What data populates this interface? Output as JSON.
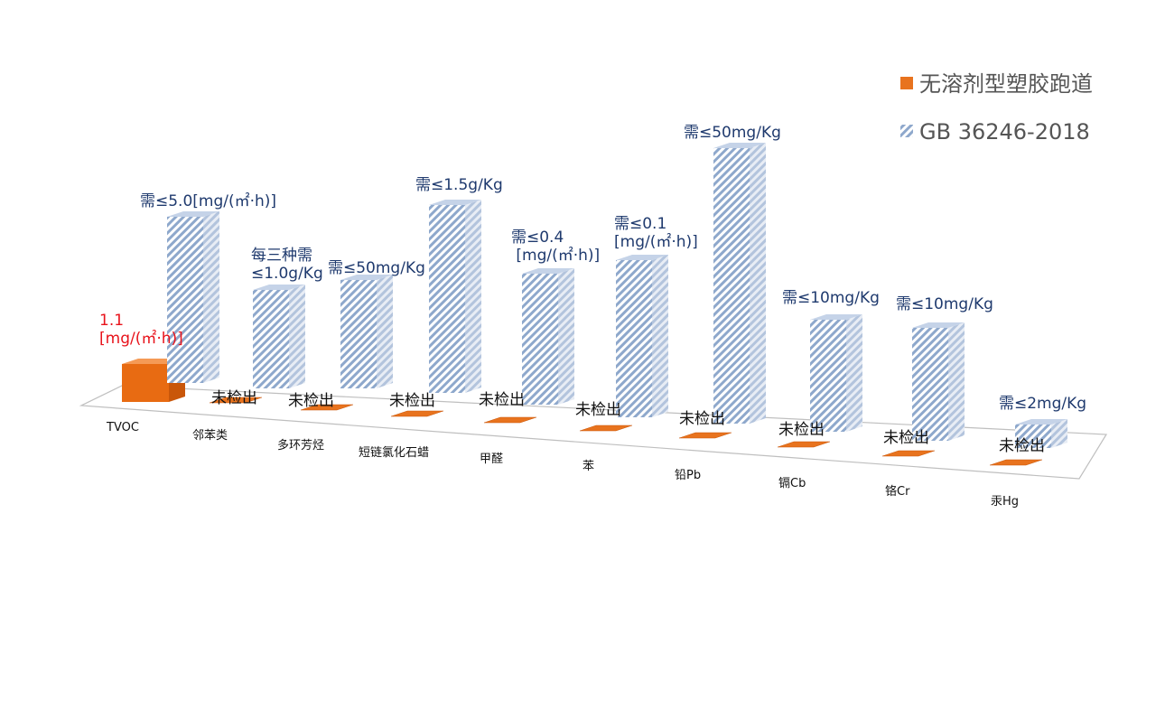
{
  "chart_data": {
    "type": "bar",
    "style": "3d-perspective",
    "series": [
      {
        "name": "无溶剂型塑胶跑道",
        "color": "#e8731e",
        "pattern": "solid",
        "labels": [
          "1.1\n[mg/(㎡·h)]",
          "未检出",
          "未检出",
          "未检出",
          "未检出",
          "未检出",
          "未检出",
          "未检出",
          "未检出",
          "未检出"
        ]
      },
      {
        "name": "GB 36246-2018",
        "color": "#9fb6d6",
        "pattern": "diagonal-hatch",
        "labels": [
          "需≤5.0[mg/(㎡·h)]",
          "每三种需\n≤1.0g/Kg",
          "需≤50mg/Kg",
          "需≤1.5g/Kg",
          "需≤0.4\n [mg/(㎡·h)]",
          "需≤0.1\n[mg/(㎡·h)]",
          "需≤50mg/Kg",
          "需≤10mg/Kg",
          "需≤10mg/Kg",
          "需≤2mg/Kg"
        ]
      }
    ],
    "categories": [
      "TVOC",
      "邻苯类",
      "多环芳烃",
      "短链氯化石蜡",
      "甲醛",
      "苯",
      "铅Pb",
      "镉Cb",
      "铬Cr",
      "汞Hg"
    ],
    "legend_position": "top-right",
    "grid": false
  }
}
